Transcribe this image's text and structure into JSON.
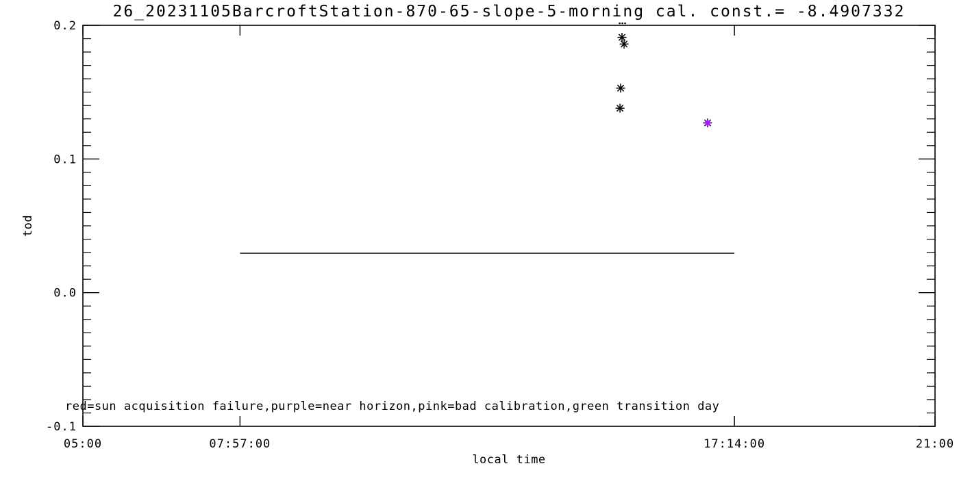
{
  "page": {
    "background": "#ffffff",
    "kind": "IDL-style calibration scatter plot"
  },
  "colors": {
    "axis": "#000000",
    "text": "#000000",
    "marker_black": "#000000",
    "marker_purple": "#A020F0",
    "background": "#ffffff"
  },
  "chart_data": {
    "type": "scatter",
    "title": "26_20231105BarcroftStation-870-65-slope-5-morning cal. const.= -8.4907332",
    "xlabel": "local time",
    "ylabel": "tod",
    "legend_note": "red=sun acquisition failure,purple=near horizon,pink=bad calibration,green transition day",
    "x_axis": {
      "min_hours": 5.0,
      "max_hours": 21.0,
      "ticks": [
        {
          "label": "05:00",
          "hours": 5.0
        },
        {
          "label": "07:57:00",
          "hours": 7.95
        },
        {
          "label": "17:14:00",
          "hours": 17.2333
        },
        {
          "label": "21:00",
          "hours": 21.0
        }
      ]
    },
    "y_axis": {
      "min": -0.1,
      "max": 0.2,
      "major_ticks": [
        {
          "label": "0.2",
          "value": 0.2
        },
        {
          "label": "0.1",
          "value": 0.1
        },
        {
          "label": "0.0",
          "value": 0.0
        },
        {
          "label": "-0.1",
          "value": -0.1
        }
      ],
      "minor_tick_step": 0.01
    },
    "grid": false,
    "points": [
      {
        "time": "15:07",
        "hours": 15.123,
        "tod": 0.191,
        "color": "#000000",
        "marker": "asterisk"
      },
      {
        "time": "15:10",
        "hours": 15.162,
        "tod": 0.186,
        "color": "#000000",
        "marker": "asterisk"
      },
      {
        "time": "15:06",
        "hours": 15.097,
        "tod": 0.153,
        "color": "#000000",
        "marker": "asterisk"
      },
      {
        "time": "15:05",
        "hours": 15.085,
        "tod": 0.138,
        "color": "#000000",
        "marker": "asterisk"
      },
      {
        "time": "16:44",
        "hours": 16.73,
        "tod": 0.127,
        "color": "#A020F0",
        "marker": "asterisk",
        "flag": "near horizon"
      }
    ],
    "clipped_points": [
      {
        "hours": 15.13,
        "tod": 0.202,
        "note": "marker clipped at top axis, only dots visible"
      }
    ],
    "flat_line": {
      "tod": 0.0295,
      "start_hours": 7.95,
      "end_hours": 17.2333,
      "color": "#000000"
    }
  }
}
